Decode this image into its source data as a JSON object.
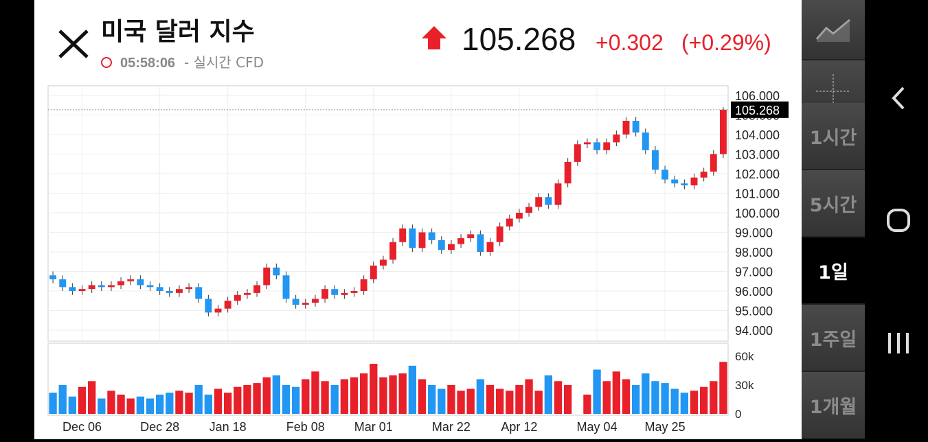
{
  "header": {
    "title": "미국 달러 지수",
    "time": "05:58:06",
    "time_note": "- 실시간 CFD",
    "change": "+0.302",
    "change_pct": "(+0.29%)"
  },
  "intervals": [
    "1시간",
    "5시간",
    "1일",
    "1주일",
    "1개월"
  ],
  "chart_data": {
    "type": "candlestick",
    "categories": [
      null,
      null,
      null,
      "Dec 06",
      null,
      null,
      null,
      null,
      null,
      null,
      null,
      "Dec 28",
      null,
      null,
      null,
      null,
      null,
      null,
      "Jan 18",
      null,
      null,
      null,
      null,
      null,
      null,
      null,
      "Feb 08",
      null,
      null,
      null,
      null,
      null,
      null,
      "Mar 01",
      null,
      null,
      null,
      null,
      null,
      null,
      null,
      "Mar 22",
      null,
      null,
      null,
      null,
      null,
      null,
      "Apr 12",
      null,
      null,
      null,
      null,
      null,
      null,
      null,
      "May 04",
      null,
      null,
      null,
      null,
      null,
      null,
      "May 25",
      null,
      null,
      null,
      null,
      null,
      null
    ],
    "open": [
      96.8,
      96.6,
      96.2,
      96.0,
      96.1,
      96.3,
      96.2,
      96.3,
      96.5,
      96.6,
      96.3,
      96.2,
      96.0,
      95.9,
      96.1,
      96.2,
      95.6,
      94.9,
      95.1,
      95.5,
      95.8,
      95.9,
      96.3,
      97.2,
      96.8,
      95.6,
      95.3,
      95.4,
      95.6,
      96.1,
      95.8,
      95.9,
      96.0,
      96.6,
      97.3,
      97.6,
      98.5,
      99.2,
      98.2,
      99.0,
      98.6,
      98.1,
      98.4,
      98.7,
      98.9,
      98.0,
      98.5,
      99.3,
      99.7,
      100.0,
      100.3,
      100.8,
      100.4,
      101.5,
      102.6,
      103.5,
      103.6,
      103.2,
      103.6,
      104.0,
      104.7,
      104.1,
      103.2,
      102.2,
      101.7,
      101.5,
      101.4,
      101.8,
      102.1,
      103.0
    ],
    "high": [
      97.0,
      96.8,
      96.4,
      96.3,
      96.5,
      96.5,
      96.5,
      96.7,
      96.8,
      96.8,
      96.5,
      96.4,
      96.2,
      96.3,
      96.4,
      96.4,
      95.8,
      95.3,
      95.7,
      96.0,
      96.1,
      96.5,
      97.4,
      97.4,
      97.0,
      95.8,
      95.6,
      95.8,
      96.3,
      96.3,
      96.1,
      96.2,
      96.8,
      97.5,
      97.8,
      98.7,
      99.4,
      99.4,
      99.2,
      99.2,
      98.8,
      98.6,
      98.9,
      99.1,
      99.1,
      98.7,
      99.5,
      99.9,
      100.2,
      100.5,
      101.0,
      101.0,
      101.7,
      102.8,
      103.7,
      103.8,
      103.8,
      103.8,
      104.2,
      104.9,
      104.9,
      104.3,
      103.4,
      102.4,
      101.9,
      101.7,
      102.0,
      102.3,
      103.2,
      105.4
    ],
    "low": [
      96.4,
      96.0,
      95.8,
      95.8,
      95.9,
      96.0,
      96.0,
      96.1,
      96.3,
      96.1,
      96.0,
      95.8,
      95.7,
      95.7,
      95.9,
      95.4,
      94.7,
      94.7,
      94.9,
      95.3,
      95.6,
      95.7,
      96.1,
      96.6,
      95.4,
      95.1,
      95.1,
      95.2,
      95.4,
      95.6,
      95.6,
      95.7,
      95.8,
      96.4,
      97.1,
      97.4,
      98.3,
      98.0,
      98.0,
      98.4,
      97.9,
      97.9,
      98.2,
      98.5,
      97.8,
      97.8,
      98.3,
      99.1,
      99.5,
      99.8,
      100.1,
      100.2,
      100.2,
      101.3,
      102.4,
      103.3,
      103.0,
      103.0,
      103.4,
      103.8,
      103.9,
      103.0,
      102.0,
      101.5,
      101.3,
      101.2,
      101.2,
      101.6,
      101.9,
      102.8
    ],
    "close": [
      96.6,
      96.2,
      96.0,
      96.1,
      96.3,
      96.2,
      96.3,
      96.5,
      96.6,
      96.3,
      96.2,
      96.0,
      95.9,
      96.1,
      96.2,
      95.6,
      94.9,
      95.1,
      95.5,
      95.8,
      95.9,
      96.3,
      97.2,
      96.8,
      95.6,
      95.3,
      95.4,
      95.6,
      96.1,
      95.8,
      95.9,
      96.0,
      96.6,
      97.3,
      97.6,
      98.5,
      99.2,
      98.2,
      99.0,
      98.6,
      98.1,
      98.4,
      98.7,
      98.9,
      98.0,
      98.5,
      99.3,
      99.7,
      100.0,
      100.3,
      100.8,
      100.4,
      101.5,
      102.6,
      103.5,
      103.6,
      103.2,
      103.6,
      104.0,
      104.7,
      104.1,
      103.2,
      102.2,
      101.7,
      101.5,
      101.4,
      101.8,
      102.1,
      103.0,
      105.268
    ],
    "volume": [
      22000,
      30000,
      18000,
      28000,
      34000,
      16000,
      24000,
      20000,
      16000,
      18000,
      16000,
      20000,
      22000,
      24000,
      22000,
      30000,
      20000,
      26000,
      22000,
      28000,
      30000,
      32000,
      38000,
      40000,
      30000,
      28000,
      36000,
      44000,
      34000,
      30000,
      36000,
      38000,
      42000,
      52000,
      38000,
      40000,
      42000,
      50000,
      36000,
      30000,
      26000,
      30000,
      24000,
      26000,
      36000,
      30000,
      26000,
      24000,
      30000,
      36000,
      24000,
      40000,
      34000,
      30000,
      0,
      20000,
      46000,
      34000,
      44000,
      36000,
      30000,
      42000,
      34000,
      32000,
      26000,
      22000,
      24000,
      28000,
      34000,
      54000
    ],
    "up_color": "#e8202a",
    "down_color": "#2196f3",
    "ylim": [
      93.44,
      106.49
    ],
    "yticks": [
      {
        "value": 94,
        "label": "94.000"
      },
      {
        "value": 95,
        "label": "95.000"
      },
      {
        "value": 96,
        "label": "96.000"
      },
      {
        "value": 97,
        "label": "97.000"
      },
      {
        "value": 98,
        "label": "98.000"
      },
      {
        "value": 99,
        "label": "99.000"
      },
      {
        "value": 100,
        "label": "100.000"
      },
      {
        "value": 101,
        "label": "101.000"
      },
      {
        "value": 102,
        "label": "102.000"
      },
      {
        "value": 103,
        "label": "103.000"
      },
      {
        "value": 104,
        "label": "104.000"
      },
      {
        "value": 105,
        "label": "105.000"
      },
      {
        "value": 106,
        "label": "106.000"
      }
    ],
    "volume_lim": [
      0,
      72000
    ],
    "volume_ticks": [
      {
        "value": 0,
        "label": "0"
      },
      {
        "value": 30000,
        "label": "30k"
      },
      {
        "value": 60000,
        "label": "60k"
      }
    ],
    "grid": true
  }
}
